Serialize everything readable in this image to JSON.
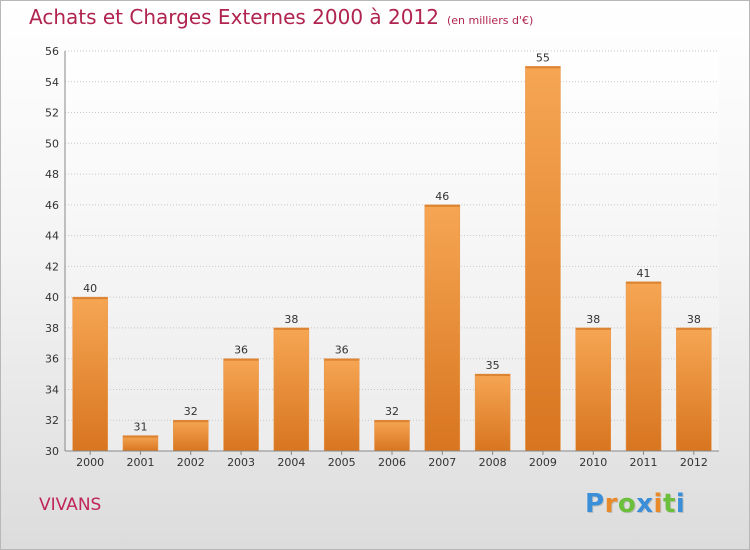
{
  "title": "Achats et Charges Externes 2000 à 2012",
  "unit": "(en milliers d'€)",
  "place": "VIVANS",
  "logo": {
    "text": "Proxiti",
    "letters": [
      {
        "char": "P",
        "color": "#3a8fd8"
      },
      {
        "char": "r",
        "color": "#e8892a"
      },
      {
        "char": "o",
        "color": "#6cbf3c"
      },
      {
        "char": "x",
        "color": "#3a8fd8"
      },
      {
        "char": "i",
        "color": "#e8892a"
      },
      {
        "char": "t",
        "color": "#6cbf3c"
      },
      {
        "char": "i",
        "color": "#3a8fd8"
      }
    ]
  },
  "colors": {
    "title": "#b0244f",
    "bar_top": "#f6a653",
    "bar_bottom": "#d87520",
    "grid": "#c8c8c8",
    "axis_text": "#333333"
  },
  "chart_data": {
    "type": "bar",
    "title": "Achats et Charges Externes 2000 à 2012",
    "subtitle": "(en milliers d'€)",
    "xlabel": "",
    "ylabel": "",
    "categories": [
      "2000",
      "2001",
      "2002",
      "2003",
      "2004",
      "2005",
      "2006",
      "2007",
      "2008",
      "2009",
      "2010",
      "2011",
      "2012"
    ],
    "values": [
      40,
      31,
      32,
      36,
      38,
      36,
      32,
      46,
      35,
      55,
      38,
      41,
      38
    ],
    "ylim": [
      30,
      56
    ],
    "yticks": [
      30,
      32,
      34,
      36,
      38,
      40,
      42,
      44,
      46,
      48,
      50,
      52,
      54,
      56
    ],
    "grid": true,
    "data_labels": true
  }
}
